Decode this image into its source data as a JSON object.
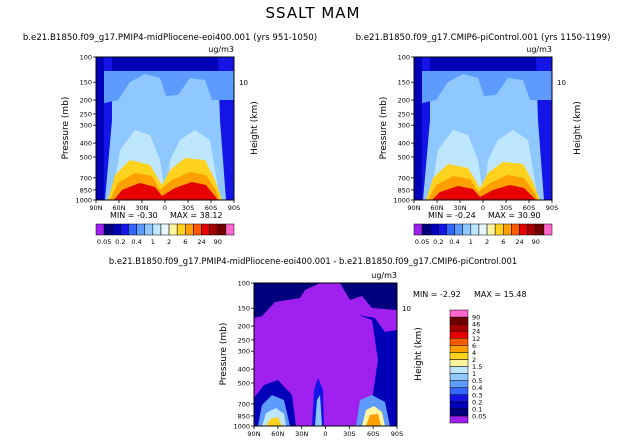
{
  "figure": {
    "title": "SSALT MAM"
  },
  "colors": {
    "field_scale": [
      "#a020f0",
      "#00007f",
      "#0000b8",
      "#1414e6",
      "#3366ff",
      "#5e9bff",
      "#8ec8ff",
      "#bfe6ff",
      "#e6f7ff",
      "#fff4a0",
      "#ffd21e",
      "#ffa000",
      "#ff5a00",
      "#e60000",
      "#a40000",
      "#6e0000",
      "#ff66cc"
    ],
    "diff_scale": [
      "#a020f0",
      "#00007f",
      "#0000b8",
      "#1414e6",
      "#3366ff",
      "#5e9bff",
      "#8ec8ff",
      "#bfe6ff",
      "#e6f7ff",
      "#fff4a0",
      "#ffd21e",
      "#ffa000",
      "#ff5a00",
      "#e60000",
      "#a40000",
      "#6e0000",
      "#ff66cc"
    ]
  },
  "chart_data": [
    {
      "type": "heatmap",
      "panel": "top-left",
      "title": "b.e21.B1850.f09_g17.PMIP4-midPliocene-eoi400.001  (yrs 951-1050)",
      "units": "ug/m3",
      "xlabel": "",
      "ylabel": "Pressure (mb)",
      "y2label": "Height (km)",
      "x_ticks": [
        "90N",
        "60N",
        "30N",
        "0",
        "30S",
        "60S",
        "90S"
      ],
      "y_ticks": [
        "100",
        "150",
        "200",
        "250",
        "300",
        "400",
        "500",
        "700",
        "850",
        "1000"
      ],
      "y2_ticks": [
        "10"
      ],
      "stats": {
        "min": "-0.30",
        "max": "38.12"
      },
      "levels": [
        "0.05",
        "0.2",
        "0.4",
        "1",
        "2",
        "6",
        "24",
        "90"
      ]
    },
    {
      "type": "heatmap",
      "panel": "top-right",
      "title": "b.e21.B1850.f09_g17.CMIP6-piControl.001  (yrs 1150-1199)",
      "units": "ug/m3",
      "xlabel": "",
      "ylabel": "Pressure (mb)",
      "y2label": "Height (km)",
      "x_ticks": [
        "90N",
        "60N",
        "30N",
        "0",
        "30S",
        "60S",
        "90S"
      ],
      "y_ticks": [
        "100",
        "150",
        "200",
        "250",
        "300",
        "400",
        "500",
        "700",
        "850",
        "1000"
      ],
      "y2_ticks": [
        "10"
      ],
      "stats": {
        "min": "-0.24",
        "max": "30.90"
      },
      "levels": [
        "0.05",
        "0.2",
        "0.4",
        "1",
        "2",
        "6",
        "24",
        "90"
      ]
    },
    {
      "type": "heatmap",
      "panel": "bottom-center",
      "title": "b.e21.B1850.f09_g17.PMIP4-midPliocene-eoi400.001 - b.e21.B1850.f09_g17.CMIP6-piControl.001",
      "units": "ug/m3",
      "xlabel": "",
      "ylabel": "Pressure (mb)",
      "y2label": "Height (km)",
      "x_ticks": [
        "90N",
        "60N",
        "30N",
        "0",
        "30S",
        "60S",
        "90S"
      ],
      "y_ticks": [
        "100",
        "150",
        "200",
        "250",
        "300",
        "400",
        "500",
        "700",
        "850",
        "1000"
      ],
      "y2_ticks": [
        "10"
      ],
      "stats": {
        "min": "-2.92",
        "max": "15.48"
      },
      "levels": [
        "0.05",
        "0.1",
        "0.2",
        "0.3",
        "0.4",
        "0.5",
        "1",
        "1.5",
        "2",
        "4",
        "6",
        "12",
        "24",
        "46",
        "90"
      ]
    }
  ]
}
